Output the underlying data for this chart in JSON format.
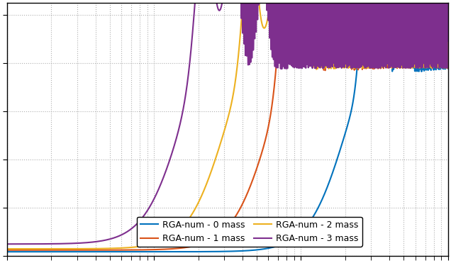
{
  "title": "",
  "xlabel": "",
  "ylabel": "",
  "colors": {
    "mass0": "#0072bd",
    "mass1": "#d95319",
    "mass2": "#edb120",
    "mass3": "#7e2f8e"
  },
  "legend_labels": [
    "RGA-num - 0 mass",
    "RGA-num - 1 mass",
    "RGA-num - 2 mass",
    "RGA-num - 3 mass"
  ],
  "ylim": [
    0,
    1.05
  ],
  "background_color": "#ffffff",
  "grid_color": "#b0b0b0"
}
